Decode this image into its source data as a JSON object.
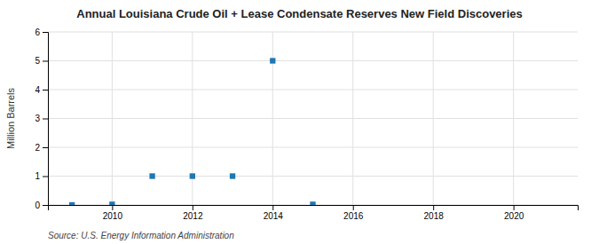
{
  "chart_data": {
    "type": "scatter",
    "title": "Annual Louisiana Crude Oil + Lease Condensate Reserves New Field Discoveries",
    "ylabel": "Million Barrels",
    "source": "Source: U.S. Energy Information Administration",
    "x": [
      2009,
      2010,
      2011,
      2012,
      2013,
      2014,
      2015
    ],
    "values": [
      0.0,
      0.02,
      1.0,
      1.0,
      1.0,
      5.0,
      0.02
    ],
    "xlim": [
      2008.4,
      2021.6
    ],
    "ylim": [
      0,
      6
    ],
    "xticks": [
      2010,
      2012,
      2014,
      2016,
      2018,
      2020
    ],
    "yticks": [
      0,
      1,
      2,
      3,
      4,
      5,
      6
    ],
    "grid": true,
    "marker": "square"
  }
}
